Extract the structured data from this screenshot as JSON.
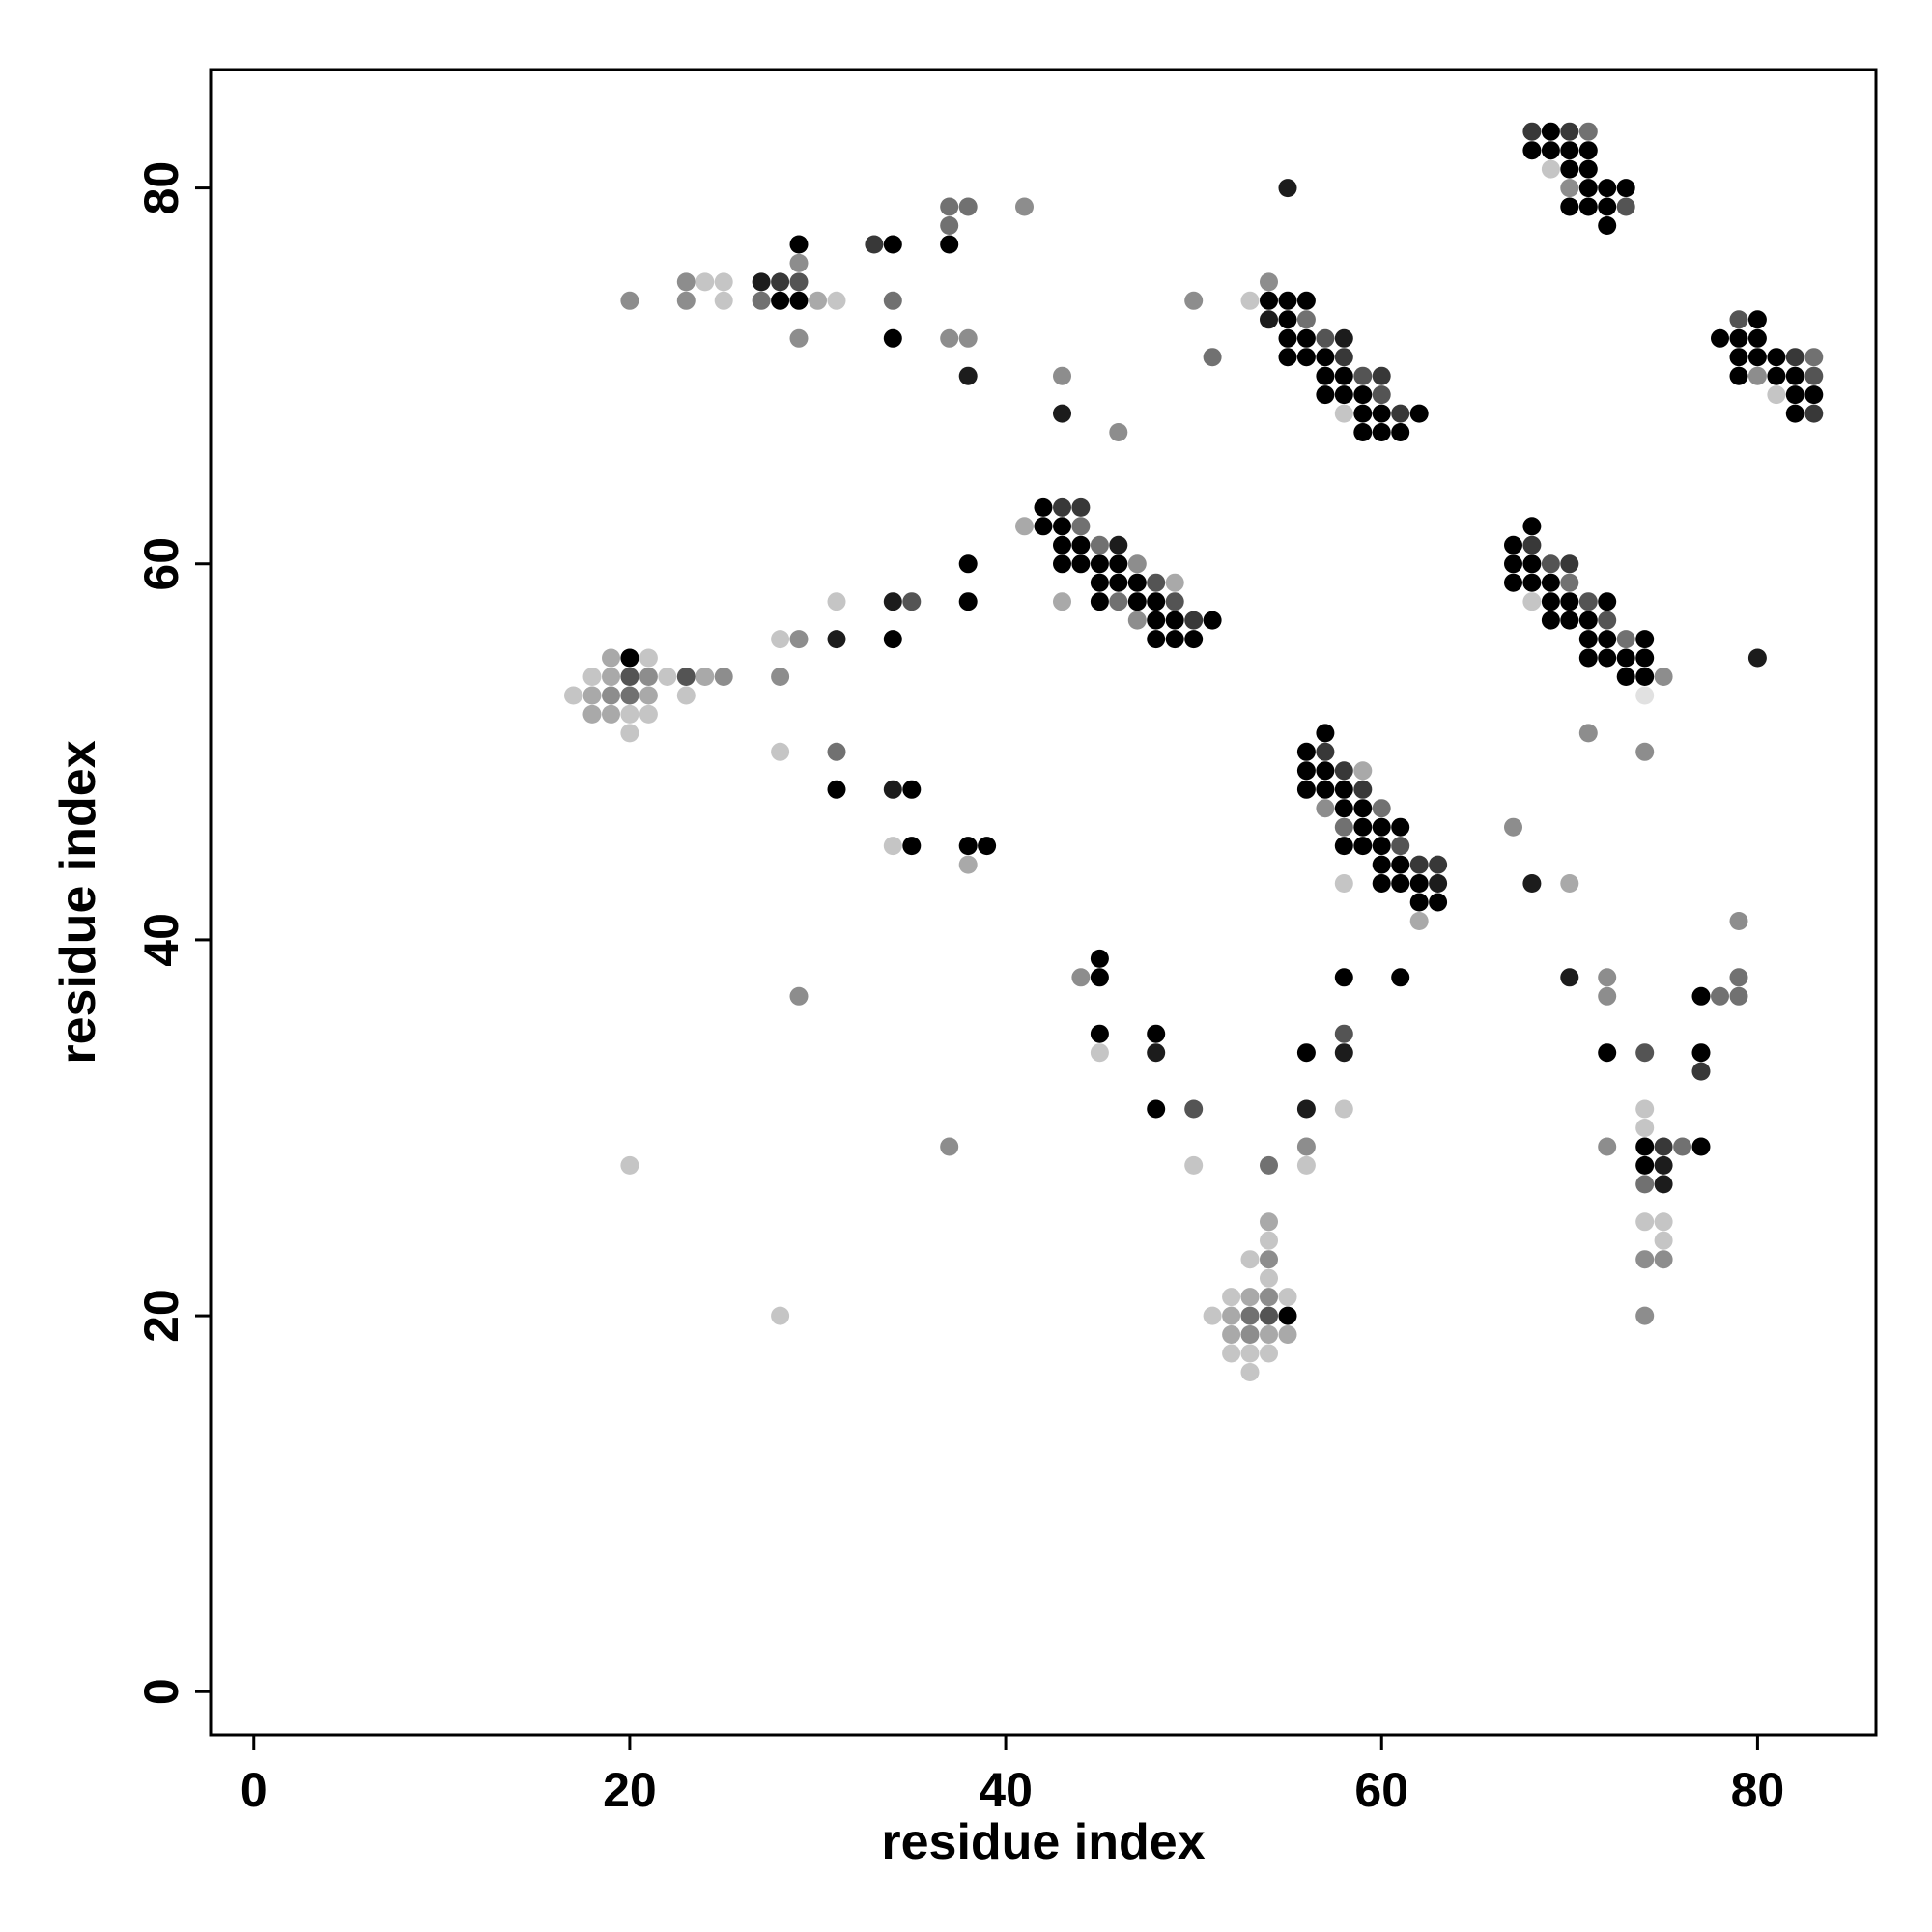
{
  "chart_data": {
    "type": "scatter",
    "title": "",
    "xlabel": "residue index",
    "ylabel": "residue index",
    "xlim": [
      -2.3,
      86.3
    ],
    "ylim": [
      -2.3,
      86.3
    ],
    "x_ticks": [
      0,
      20,
      40,
      60,
      80
    ],
    "y_ticks": [
      0,
      20,
      40,
      60,
      80
    ],
    "grid": false,
    "legend": "none",
    "color_scale": "grayscale: darker marker = higher value (1 = black, 0.2 = light gray)",
    "points": [
      [
        68,
        83,
        0.8
      ],
      [
        69,
        83,
        1
      ],
      [
        70,
        83,
        0.8
      ],
      [
        71,
        83,
        0.6
      ],
      [
        68,
        82,
        1
      ],
      [
        69,
        82,
        1
      ],
      [
        70,
        82,
        1
      ],
      [
        71,
        82,
        1
      ],
      [
        69,
        81,
        0.3
      ],
      [
        70,
        81,
        1
      ],
      [
        71,
        81,
        1
      ],
      [
        70,
        80,
        0.5
      ],
      [
        71,
        80,
        1
      ],
      [
        72,
        80,
        1
      ],
      [
        73,
        80,
        1
      ],
      [
        55,
        80,
        0.9
      ],
      [
        70,
        79,
        1
      ],
      [
        71,
        79,
        1
      ],
      [
        72,
        79,
        1
      ],
      [
        73,
        79,
        0.7
      ],
      [
        72,
        78,
        1
      ],
      [
        37,
        79,
        0.6
      ],
      [
        38,
        79,
        0.6
      ],
      [
        41,
        79,
        0.5
      ],
      [
        37,
        78,
        0.6
      ],
      [
        29,
        77,
        1
      ],
      [
        33,
        77,
        0.8
      ],
      [
        34,
        77,
        1
      ],
      [
        37,
        77,
        1
      ],
      [
        29,
        76,
        0.5
      ],
      [
        23,
        75,
        0.5
      ],
      [
        24,
        75,
        0.3
      ],
      [
        25,
        75,
        0.3
      ],
      [
        27,
        75,
        0.9
      ],
      [
        28,
        75,
        0.8
      ],
      [
        29,
        75,
        0.7
      ],
      [
        54,
        75,
        0.5
      ],
      [
        20,
        74,
        0.5
      ],
      [
        23,
        74,
        0.5
      ],
      [
        25,
        74,
        0.3
      ],
      [
        27,
        74,
        0.6
      ],
      [
        28,
        74,
        1
      ],
      [
        29,
        74,
        1
      ],
      [
        30,
        74,
        0.4
      ],
      [
        31,
        74,
        0.3
      ],
      [
        34,
        74,
        0.6
      ],
      [
        50,
        74,
        0.5
      ],
      [
        53,
        74,
        0.3
      ],
      [
        54,
        74,
        1
      ],
      [
        55,
        74,
        1
      ],
      [
        56,
        74,
        1
      ],
      [
        54,
        73,
        0.9
      ],
      [
        55,
        73,
        1
      ],
      [
        56,
        73,
        0.6
      ],
      [
        79,
        73,
        0.7
      ],
      [
        80,
        73,
        1
      ],
      [
        29,
        72,
        0.5
      ],
      [
        34,
        72,
        1
      ],
      [
        37,
        72,
        0.5
      ],
      [
        38,
        72,
        0.5
      ],
      [
        55,
        72,
        1
      ],
      [
        56,
        72,
        1
      ],
      [
        57,
        72,
        0.7
      ],
      [
        58,
        72,
        0.9
      ],
      [
        78,
        72,
        1
      ],
      [
        79,
        72,
        1
      ],
      [
        80,
        72,
        1
      ],
      [
        51,
        71,
        0.6
      ],
      [
        55,
        71,
        1
      ],
      [
        56,
        71,
        1
      ],
      [
        57,
        71,
        1
      ],
      [
        58,
        71,
        0.8
      ],
      [
        79,
        71,
        1
      ],
      [
        80,
        71,
        1
      ],
      [
        81,
        71,
        1
      ],
      [
        82,
        71,
        0.8
      ],
      [
        83,
        71,
        0.6
      ],
      [
        38,
        70,
        0.9
      ],
      [
        43,
        70,
        0.5
      ],
      [
        57,
        70,
        1
      ],
      [
        58,
        70,
        1
      ],
      [
        59,
        70,
        0.7
      ],
      [
        60,
        70,
        0.8
      ],
      [
        79,
        70,
        1
      ],
      [
        80,
        70,
        0.5
      ],
      [
        81,
        70,
        1
      ],
      [
        82,
        70,
        1
      ],
      [
        83,
        70,
        0.7
      ],
      [
        57,
        69,
        1
      ],
      [
        58,
        69,
        1
      ],
      [
        59,
        69,
        1
      ],
      [
        60,
        69,
        0.7
      ],
      [
        81,
        69,
        0.3
      ],
      [
        82,
        69,
        1
      ],
      [
        83,
        69,
        1
      ],
      [
        43,
        68,
        0.9
      ],
      [
        58,
        68,
        0.3
      ],
      [
        59,
        68,
        1
      ],
      [
        60,
        68,
        1
      ],
      [
        61,
        68,
        0.8
      ],
      [
        62,
        68,
        1
      ],
      [
        82,
        68,
        1
      ],
      [
        83,
        68,
        0.8
      ],
      [
        46,
        67,
        0.5
      ],
      [
        59,
        67,
        1
      ],
      [
        60,
        67,
        1
      ],
      [
        61,
        67,
        1
      ],
      [
        42,
        63,
        1
      ],
      [
        43,
        63,
        0.8
      ],
      [
        44,
        63,
        0.8
      ],
      [
        41,
        62,
        0.4
      ],
      [
        42,
        62,
        1
      ],
      [
        43,
        62,
        1
      ],
      [
        44,
        62,
        0.6
      ],
      [
        68,
        62,
        1
      ],
      [
        43,
        61,
        1
      ],
      [
        44,
        61,
        1
      ],
      [
        45,
        61,
        0.6
      ],
      [
        46,
        61,
        0.9
      ],
      [
        67,
        61,
        1
      ],
      [
        68,
        61,
        0.8
      ],
      [
        38,
        60,
        1
      ],
      [
        43,
        60,
        1
      ],
      [
        44,
        60,
        1
      ],
      [
        45,
        60,
        1
      ],
      [
        46,
        60,
        1
      ],
      [
        47,
        60,
        0.5
      ],
      [
        67,
        60,
        1
      ],
      [
        68,
        60,
        1
      ],
      [
        69,
        60,
        0.7
      ],
      [
        70,
        60,
        0.8
      ],
      [
        45,
        59,
        1
      ],
      [
        46,
        59,
        1
      ],
      [
        47,
        59,
        1
      ],
      [
        48,
        59,
        0.7
      ],
      [
        49,
        59,
        0.4
      ],
      [
        67,
        59,
        1
      ],
      [
        68,
        59,
        1
      ],
      [
        69,
        59,
        1
      ],
      [
        70,
        59,
        0.6
      ],
      [
        31,
        58,
        0.3
      ],
      [
        34,
        58,
        0.9
      ],
      [
        35,
        58,
        0.7
      ],
      [
        38,
        58,
        1
      ],
      [
        43,
        58,
        0.4
      ],
      [
        45,
        58,
        1
      ],
      [
        46,
        58,
        0.6
      ],
      [
        47,
        58,
        1
      ],
      [
        48,
        58,
        1
      ],
      [
        49,
        58,
        0.7
      ],
      [
        68,
        58,
        0.3
      ],
      [
        69,
        58,
        1
      ],
      [
        70,
        58,
        1
      ],
      [
        71,
        58,
        0.7
      ],
      [
        72,
        58,
        1
      ],
      [
        47,
        57,
        0.5
      ],
      [
        48,
        57,
        1
      ],
      [
        49,
        57,
        1
      ],
      [
        50,
        57,
        0.8
      ],
      [
        51,
        57,
        1
      ],
      [
        69,
        57,
        1
      ],
      [
        70,
        57,
        1
      ],
      [
        71,
        57,
        1
      ],
      [
        72,
        57,
        0.7
      ],
      [
        28,
        56,
        0.3
      ],
      [
        29,
        56,
        0.5
      ],
      [
        31,
        56,
        0.9
      ],
      [
        34,
        56,
        1
      ],
      [
        48,
        56,
        1
      ],
      [
        49,
        56,
        1
      ],
      [
        50,
        56,
        1
      ],
      [
        71,
        56,
        1
      ],
      [
        72,
        56,
        1
      ],
      [
        73,
        56,
        0.6
      ],
      [
        74,
        56,
        1
      ],
      [
        19,
        55,
        0.4
      ],
      [
        20,
        55,
        1
      ],
      [
        21,
        55,
        0.3
      ],
      [
        71,
        55,
        1
      ],
      [
        72,
        55,
        1
      ],
      [
        73,
        55,
        1
      ],
      [
        74,
        55,
        1
      ],
      [
        80,
        55,
        0.9
      ],
      [
        18,
        54,
        0.3
      ],
      [
        19,
        54,
        0.4
      ],
      [
        20,
        54,
        0.7
      ],
      [
        21,
        54,
        0.5
      ],
      [
        22,
        54,
        0.3
      ],
      [
        23,
        54,
        0.7
      ],
      [
        24,
        54,
        0.4
      ],
      [
        25,
        54,
        0.5
      ],
      [
        28,
        54,
        0.5
      ],
      [
        73,
        54,
        1
      ],
      [
        74,
        54,
        1
      ],
      [
        75,
        54,
        0.5
      ],
      [
        17,
        53,
        0.3
      ],
      [
        18,
        53,
        0.4
      ],
      [
        19,
        53,
        0.5
      ],
      [
        20,
        53,
        0.6
      ],
      [
        21,
        53,
        0.4
      ],
      [
        23,
        53,
        0.3
      ],
      [
        74,
        53,
        0.2
      ],
      [
        18,
        52,
        0.4
      ],
      [
        19,
        52,
        0.4
      ],
      [
        20,
        52,
        0.3
      ],
      [
        21,
        52,
        0.3
      ],
      [
        20,
        51,
        0.3
      ],
      [
        57,
        51,
        1
      ],
      [
        71,
        51,
        0.5
      ],
      [
        28,
        50,
        0.3
      ],
      [
        31,
        50,
        0.6
      ],
      [
        56,
        50,
        1
      ],
      [
        57,
        50,
        0.8
      ],
      [
        74,
        50,
        0.5
      ],
      [
        56,
        49,
        1
      ],
      [
        57,
        49,
        1
      ],
      [
        58,
        49,
        0.8
      ],
      [
        59,
        49,
        0.4
      ],
      [
        31,
        48,
        1
      ],
      [
        34,
        48,
        0.9
      ],
      [
        35,
        48,
        1
      ],
      [
        56,
        48,
        1
      ],
      [
        57,
        48,
        1
      ],
      [
        58,
        48,
        1
      ],
      [
        59,
        48,
        0.8
      ],
      [
        57,
        47,
        0.5
      ],
      [
        58,
        47,
        1
      ],
      [
        59,
        47,
        1
      ],
      [
        60,
        47,
        0.6
      ],
      [
        58,
        46,
        0.6
      ],
      [
        59,
        46,
        1
      ],
      [
        60,
        46,
        1
      ],
      [
        61,
        46,
        1
      ],
      [
        67,
        46,
        0.5
      ],
      [
        34,
        45,
        0.3
      ],
      [
        35,
        45,
        1
      ],
      [
        38,
        45,
        1
      ],
      [
        39,
        45,
        1
      ],
      [
        58,
        45,
        1
      ],
      [
        59,
        45,
        1
      ],
      [
        60,
        45,
        1
      ],
      [
        61,
        45,
        0.7
      ],
      [
        38,
        44,
        0.4
      ],
      [
        60,
        44,
        1
      ],
      [
        61,
        44,
        1
      ],
      [
        62,
        44,
        0.8
      ],
      [
        63,
        44,
        0.8
      ],
      [
        58,
        43,
        0.3
      ],
      [
        60,
        43,
        1
      ],
      [
        61,
        43,
        1
      ],
      [
        62,
        43,
        1
      ],
      [
        63,
        43,
        0.9
      ],
      [
        68,
        43,
        0.9
      ],
      [
        70,
        43,
        0.4
      ],
      [
        62,
        42,
        1
      ],
      [
        63,
        42,
        1
      ],
      [
        62,
        41,
        0.4
      ],
      [
        79,
        41,
        0.5
      ],
      [
        45,
        39,
        1
      ],
      [
        29,
        37,
        0.5
      ],
      [
        44,
        38,
        0.5
      ],
      [
        45,
        38,
        1
      ],
      [
        58,
        38,
        1
      ],
      [
        61,
        38,
        1
      ],
      [
        70,
        38,
        0.9
      ],
      [
        72,
        38,
        0.5
      ],
      [
        79,
        38,
        0.6
      ],
      [
        72,
        37,
        0.5
      ],
      [
        77,
        37,
        1
      ],
      [
        78,
        37,
        0.6
      ],
      [
        79,
        37,
        0.6
      ],
      [
        45,
        35,
        1
      ],
      [
        48,
        35,
        1
      ],
      [
        58,
        35,
        0.7
      ],
      [
        45,
        34,
        0.3
      ],
      [
        48,
        34,
        0.9
      ],
      [
        56,
        34,
        1
      ],
      [
        58,
        34,
        0.9
      ],
      [
        72,
        34,
        1
      ],
      [
        74,
        34,
        0.7
      ],
      [
        77,
        34,
        1
      ],
      [
        77,
        33,
        0.8
      ],
      [
        48,
        31,
        1
      ],
      [
        50,
        31,
        0.7
      ],
      [
        56,
        31,
        0.9
      ],
      [
        58,
        31,
        0.3
      ],
      [
        74,
        31,
        0.3
      ],
      [
        74,
        30,
        0.3
      ],
      [
        37,
        29,
        0.5
      ],
      [
        72,
        29,
        0.5
      ],
      [
        74,
        29,
        1
      ],
      [
        75,
        29,
        0.8
      ],
      [
        76,
        29,
        0.6
      ],
      [
        77,
        29,
        1
      ],
      [
        20,
        28,
        0.3
      ],
      [
        50,
        28,
        0.3
      ],
      [
        54,
        28,
        0.6
      ],
      [
        56,
        28,
        0.3
      ],
      [
        74,
        28,
        1
      ],
      [
        75,
        28,
        0.9
      ],
      [
        56,
        29,
        0.5
      ],
      [
        74,
        27,
        0.6
      ],
      [
        75,
        27,
        0.9
      ],
      [
        54,
        25,
        0.4
      ],
      [
        74,
        25,
        0.3
      ],
      [
        75,
        25,
        0.3
      ],
      [
        54,
        24,
        0.3
      ],
      [
        75,
        24,
        0.3
      ],
      [
        53,
        23,
        0.3
      ],
      [
        54,
        23,
        0.5
      ],
      [
        74,
        23,
        0.5
      ],
      [
        75,
        23,
        0.5
      ],
      [
        54,
        22,
        0.3
      ],
      [
        52,
        21,
        0.3
      ],
      [
        53,
        21,
        0.4
      ],
      [
        54,
        21,
        0.5
      ],
      [
        55,
        21,
        0.3
      ],
      [
        28,
        20,
        0.3
      ],
      [
        51,
        20,
        0.3
      ],
      [
        52,
        20,
        0.4
      ],
      [
        53,
        20,
        0.6
      ],
      [
        54,
        20,
        0.7
      ],
      [
        55,
        20,
        1
      ],
      [
        74,
        20,
        0.5
      ],
      [
        52,
        19,
        0.4
      ],
      [
        53,
        19,
        0.5
      ],
      [
        54,
        19,
        0.4
      ],
      [
        55,
        19,
        0.4
      ],
      [
        52,
        18,
        0.3
      ],
      [
        53,
        18,
        0.3
      ],
      [
        54,
        18,
        0.3
      ],
      [
        53,
        17,
        0.3
      ]
    ]
  }
}
